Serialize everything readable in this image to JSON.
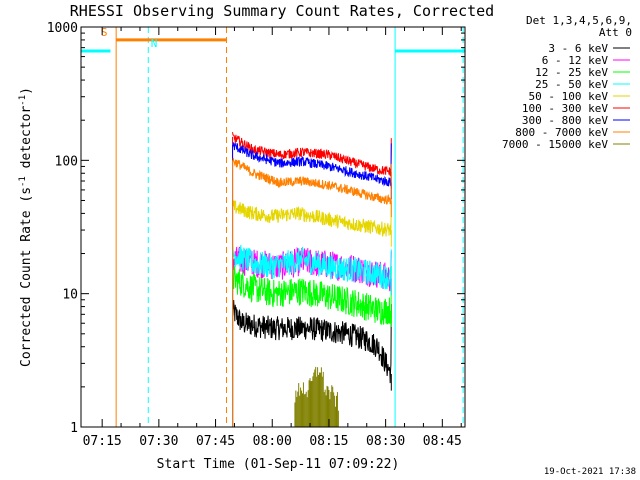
{
  "chart_data": {
    "type": "line",
    "title": "RHESSI Observing Summary Count Rates, Corrected",
    "xlabel": "Start Time (01-Sep-11 07:09:22)",
    "ylabel": "Corrected Count Rate (s⁻¹ detector⁻¹)",
    "ylabel_parts": {
      "text": "Corrected Count Rate (s",
      "exp1": "-1",
      "mid": " detector",
      "exp2": "-1",
      "end": ")"
    },
    "x_range": [
      "07:09:22",
      "08:51:00"
    ],
    "x_range_min": [
      429.4,
      531
    ],
    "y_scale": "log",
    "ylim": [
      1,
      1000
    ],
    "x_ticks": [
      "07:15",
      "07:30",
      "07:45",
      "08:00",
      "08:15",
      "08:30",
      "08:45"
    ],
    "x_ticks_min": [
      435,
      450,
      465,
      480,
      495,
      510,
      525
    ],
    "y_ticks": [
      "1",
      "10",
      "100",
      "1000"
    ],
    "y_ticks_values": [
      1,
      10,
      100,
      1000
    ],
    "legend": {
      "placement": "right",
      "header": [
        "Det 1,3,4,5,6,9,",
        "Att 0"
      ],
      "entries": [
        {
          "label": "3 - 6 keV",
          "color": "#000000"
        },
        {
          "label": "6 - 12 keV",
          "color": "#ff00ff"
        },
        {
          "label": "12 - 25 keV",
          "color": "#00ff00"
        },
        {
          "label": "25 - 50 keV",
          "color": "#00ffff"
        },
        {
          "label": "50 - 100 keV",
          "color": "#e6d600"
        },
        {
          "label": "100 - 300 keV",
          "color": "#ff0000"
        },
        {
          "label": "300 - 800 keV",
          "color": "#0000ff"
        },
        {
          "label": "800 - 7000 keV",
          "color": "#ff8000"
        },
        {
          "label": "7000 - 15000 keV",
          "color": "#808000"
        }
      ]
    },
    "series": [
      {
        "name": "3 - 6 keV",
        "color": "#000000",
        "noise": 1.5,
        "points": [
          [
            469.5,
            7.5
          ],
          [
            472,
            6
          ],
          [
            480,
            5.5
          ],
          [
            490,
            5.5
          ],
          [
            500,
            5
          ],
          [
            505,
            4.5
          ],
          [
            508,
            4
          ],
          [
            510,
            3
          ],
          [
            511.5,
            2.5
          ]
        ]
      },
      {
        "name": "6 - 12 keV",
        "color": "#ff00ff",
        "noise": 1.8,
        "points": [
          [
            469.5,
            18
          ],
          [
            475,
            17
          ],
          [
            482,
            16
          ],
          [
            488,
            17.5
          ],
          [
            495,
            16.5
          ],
          [
            502,
            15.5
          ],
          [
            508,
            14
          ],
          [
            511.5,
            13
          ]
        ]
      },
      {
        "name": "12 - 25 keV",
        "color": "#00ff00",
        "noise": 1.8,
        "points": [
          [
            469.5,
            13
          ],
          [
            475,
            11
          ],
          [
            480,
            10
          ],
          [
            488,
            10.5
          ],
          [
            495,
            9.5
          ],
          [
            502,
            8.5
          ],
          [
            508,
            7.5
          ],
          [
            511.5,
            7.5
          ]
        ]
      },
      {
        "name": "25 - 50 keV",
        "color": "#00ffff",
        "noise": 1.6,
        "points": [
          [
            469.5,
            20
          ],
          [
            475,
            17
          ],
          [
            480,
            16
          ],
          [
            488,
            18
          ],
          [
            495,
            16
          ],
          [
            502,
            15
          ],
          [
            508,
            14
          ],
          [
            511.5,
            13
          ]
        ]
      },
      {
        "name": "50 - 100 keV",
        "color": "#e6d600",
        "noise": 0.9,
        "points": [
          [
            469.5,
            45
          ],
          [
            475,
            40
          ],
          [
            480,
            38
          ],
          [
            487,
            40
          ],
          [
            495,
            36
          ],
          [
            502,
            33
          ],
          [
            508,
            31
          ],
          [
            511.5,
            30
          ]
        ]
      },
      {
        "name": "100 - 300 keV",
        "color": "#ff0000",
        "noise": 0.6,
        "points": [
          [
            469.5,
            150
          ],
          [
            475,
            120
          ],
          [
            482,
            110
          ],
          [
            488,
            115
          ],
          [
            495,
            110
          ],
          [
            502,
            95
          ],
          [
            508,
            85
          ],
          [
            511.5,
            82
          ]
        ]
      },
      {
        "name": "300 - 800 keV",
        "color": "#0000ff",
        "noise": 0.6,
        "points": [
          [
            469.5,
            130
          ],
          [
            475,
            108
          ],
          [
            482,
            95
          ],
          [
            488,
            98
          ],
          [
            495,
            90
          ],
          [
            502,
            80
          ],
          [
            508,
            72
          ],
          [
            511.5,
            68
          ]
        ]
      },
      {
        "name": "800 - 7000 keV",
        "color": "#ff8000",
        "noise": 0.6,
        "points": [
          [
            469.5,
            100
          ],
          [
            475,
            80
          ],
          [
            482,
            68
          ],
          [
            488,
            70
          ],
          [
            495,
            65
          ],
          [
            502,
            58
          ],
          [
            508,
            52
          ],
          [
            511.5,
            50
          ]
        ]
      },
      {
        "name": "7000 - 15000 keV",
        "color": "#808000",
        "noise": 0,
        "points": [
          [
            486,
            1.5
          ],
          [
            487.5,
            2
          ],
          [
            489.5,
            1.8
          ],
          [
            491,
            2.3
          ],
          [
            492.5,
            2.8
          ],
          [
            494,
            1.9
          ],
          [
            496,
            1.7
          ],
          [
            497.5,
            1.5
          ]
        ]
      }
    ],
    "attenuator_state": {
      "label": "S",
      "color": "#ff8000",
      "start_min": 438.7,
      "end_min": 467.9,
      "level": 800
    },
    "night_segments": [
      {
        "label": "N",
        "color": "#00ffff",
        "start_min": 429.4,
        "end_min": 437.2,
        "level": 660
      },
      {
        "color": "#00ffff",
        "start_min": 512.5,
        "end_min": 531,
        "level": 660
      }
    ],
    "vertical_markers": [
      {
        "min": 429.4,
        "color": "#00ffff",
        "dashed": false
      },
      {
        "min": 438.7,
        "color": "#ff8000",
        "dashed": false
      },
      {
        "min": 447.2,
        "color": "#00ffff",
        "dashed": true
      },
      {
        "min": 467.9,
        "color": "#ff8000",
        "dashed": true
      },
      {
        "min": 512.5,
        "color": "#00ffff",
        "dashed": false
      },
      {
        "min": 530.5,
        "color": "#00ffff",
        "dashed": true
      }
    ],
    "data_gaps": [
      [
        0,
        469.4
      ],
      [
        512.2,
        531
      ]
    ],
    "grid": false
  },
  "footer": {
    "timestamp": "19-Oct-2021 17:38"
  }
}
